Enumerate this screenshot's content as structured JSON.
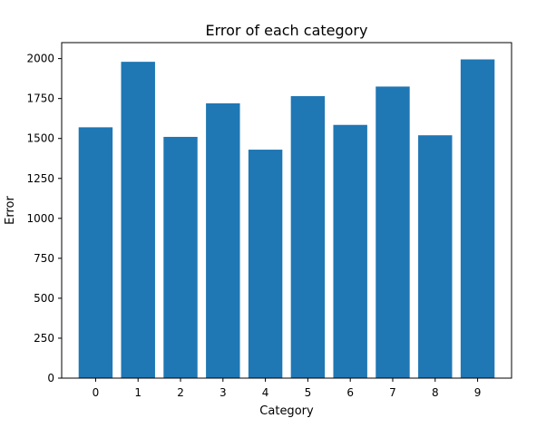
{
  "chart_data": {
    "type": "bar",
    "title": "Error of each category",
    "xlabel": "Category",
    "ylabel": "Error",
    "categories": [
      "0",
      "1",
      "2",
      "3",
      "4",
      "5",
      "6",
      "7",
      "8",
      "9"
    ],
    "values": [
      1570,
      1980,
      1510,
      1720,
      1430,
      1765,
      1585,
      1825,
      1520,
      1995
    ],
    "ylim": [
      0,
      2100
    ],
    "yticks": [
      0,
      250,
      500,
      750,
      1000,
      1250,
      1500,
      1750,
      2000
    ],
    "grid": false,
    "bar_color": "#1f77b4"
  }
}
